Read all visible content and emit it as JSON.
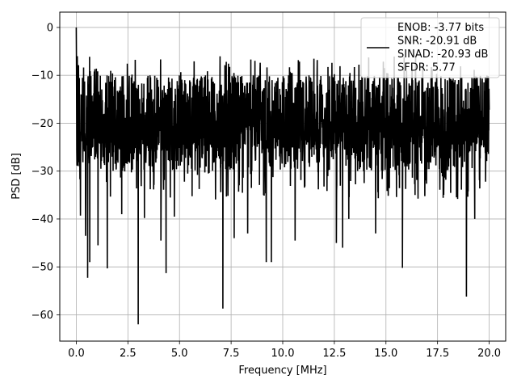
{
  "chart_data": {
    "type": "line",
    "title": "",
    "xlabel": "Frequency [MHz]",
    "ylabel": "PSD [dB]",
    "xlim": [
      -0.8,
      20.8
    ],
    "ylim": [
      -65.5,
      3.2
    ],
    "xticks": [
      0.0,
      2.5,
      5.0,
      7.5,
      10.0,
      12.5,
      15.0,
      17.5,
      20.0
    ],
    "xtick_labels": [
      "0.0",
      "2.5",
      "5.0",
      "7.5",
      "10.0",
      "12.5",
      "15.0",
      "17.5",
      "20.0"
    ],
    "yticks": [
      0,
      -10,
      -20,
      -30,
      -40,
      -50,
      -60
    ],
    "ytick_labels": [
      "0",
      "−10",
      "−20",
      "−30",
      "−40",
      "−50",
      "−60"
    ],
    "grid": true,
    "legend_position": "top-right",
    "series": [
      {
        "name": "ENOB: -3.77 bits\nSNR: -20.91 dB\nSINAD: -20.93 dB\nSFDR: 5.77",
        "legend_lines": [
          "ENOB: -3.77 bits",
          "SNR: -20.91 dB",
          "SINAD: -20.93 dB",
          "SFDR: 5.77"
        ],
        "color": "#000000",
        "x_range": [
          0,
          20
        ],
        "baseline_db": -21,
        "band_low_db": -30,
        "band_high_db": -10,
        "envelope_high_db": -6,
        "peaks": [
          {
            "x": 0.0,
            "y": 0
          },
          {
            "x": 0.05,
            "y": -6
          },
          {
            "x": 0.1,
            "y": -13
          },
          {
            "x": 0.15,
            "y": -23.5
          }
        ],
        "dips": [
          {
            "x": 0.2,
            "y": -39.3
          },
          {
            "x": 0.45,
            "y": -43.5
          },
          {
            "x": 0.55,
            "y": -52.3
          },
          {
            "x": 0.65,
            "y": -49
          },
          {
            "x": 1.05,
            "y": -45.5
          },
          {
            "x": 1.5,
            "y": -50.3
          },
          {
            "x": 2.2,
            "y": -39
          },
          {
            "x": 3.0,
            "y": -62
          },
          {
            "x": 3.3,
            "y": -39.8
          },
          {
            "x": 4.1,
            "y": -44.5
          },
          {
            "x": 4.35,
            "y": -51.3
          },
          {
            "x": 4.75,
            "y": -39.5
          },
          {
            "x": 7.1,
            "y": -58.7
          },
          {
            "x": 7.65,
            "y": -44
          },
          {
            "x": 8.3,
            "y": -43
          },
          {
            "x": 9.2,
            "y": -49
          },
          {
            "x": 9.45,
            "y": -49
          },
          {
            "x": 10.6,
            "y": -44.5
          },
          {
            "x": 12.6,
            "y": -45
          },
          {
            "x": 12.9,
            "y": -46
          },
          {
            "x": 13.2,
            "y": -40
          },
          {
            "x": 14.5,
            "y": -43
          },
          {
            "x": 15.8,
            "y": -50.2
          },
          {
            "x": 18.9,
            "y": -56.2
          },
          {
            "x": 19.3,
            "y": -40
          }
        ]
      }
    ]
  }
}
